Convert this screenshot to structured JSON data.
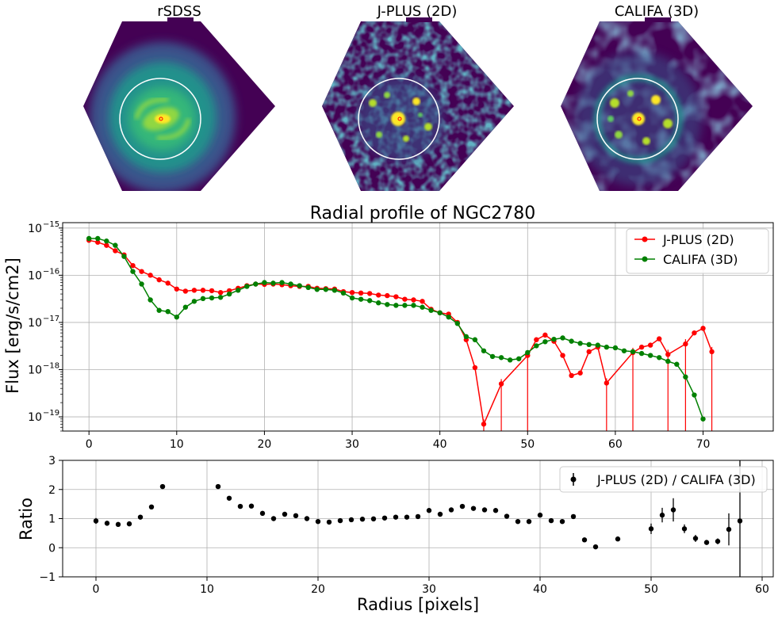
{
  "images": [
    {
      "title": "rSDSS",
      "style": "smooth"
    },
    {
      "title": "J-PLUS (2D)",
      "style": "noisy"
    },
    {
      "title": "CALIFA (3D)",
      "style": "clumpy"
    }
  ],
  "colors": {
    "background": "#440154",
    "jplus": "#ff0000",
    "califa": "#008000",
    "ratio": "#000000",
    "grid": "#b0b0b0",
    "aperture": "#ffffff"
  },
  "chart_data": [
    {
      "type": "line",
      "title": "Radial profile of NGC2780",
      "xlabel": "",
      "ylabel": "Flux [erg/s/cm2]",
      "yscale": "log",
      "xlim": [
        -3,
        78
      ],
      "ylim": [
        5e-20,
        1.3e-15
      ],
      "xticks": [
        0,
        10,
        20,
        30,
        40,
        50,
        60,
        70
      ],
      "yticks": [
        1e-19,
        1e-18,
        1e-17,
        1e-16,
        1e-15
      ],
      "ytick_labels": [
        [
          "10",
          "−19"
        ],
        [
          "10",
          "−18"
        ],
        [
          "10",
          "−17"
        ],
        [
          "10",
          "−16"
        ],
        [
          "10",
          "−15"
        ]
      ],
      "grid": true,
      "legend": "top-right",
      "series": [
        {
          "name": "J-PLUS (2D)",
          "color": "#ff0000",
          "x": [
            0,
            1,
            2,
            3,
            4,
            5,
            6,
            7,
            8,
            9,
            10,
            11,
            12,
            13,
            14,
            15,
            16,
            17,
            18,
            19,
            20,
            21,
            22,
            23,
            24,
            25,
            26,
            27,
            28,
            29,
            30,
            31,
            32,
            33,
            34,
            35,
            36,
            37,
            38,
            39,
            40,
            41,
            42,
            43,
            44,
            45,
            47,
            50,
            51,
            52,
            53,
            54,
            55,
            56,
            57,
            58,
            59,
            62,
            63,
            64,
            65,
            66,
            68,
            69,
            70,
            71
          ],
          "y": [
            5.5e-16,
            5e-16,
            4.3e-16,
            3.3e-16,
            2.7e-16,
            1.6e-16,
            1.2e-16,
            1e-16,
            8e-17,
            6.8e-17,
            5.1e-17,
            4.6e-17,
            4.8e-17,
            4.8e-17,
            4.7e-17,
            4.3e-17,
            4.7e-17,
            5.3e-17,
            6e-17,
            6.5e-17,
            6.4e-17,
            6.5e-17,
            6.3e-17,
            6e-17,
            5.8e-17,
            5.8e-17,
            5.3e-17,
            5.2e-17,
            5.1e-17,
            4.5e-17,
            4.3e-17,
            4.2e-17,
            4.1e-17,
            3.8e-17,
            3.7e-17,
            3.5e-17,
            3.1e-17,
            3e-17,
            2.8e-17,
            1.9e-17,
            1.6e-17,
            1.5e-17,
            1e-17,
            4.3e-18,
            1.1e-18,
            7e-20,
            5e-19,
            2e-18,
            4.3e-18,
            5.4e-18,
            4e-18,
            2e-18,
            7.5e-19,
            8.5e-19,
            2.4e-18,
            3e-18,
            5.2e-19,
            2.3e-18,
            3e-18,
            3.3e-18,
            4.5e-18,
            2.1e-18,
            3.5e-18,
            6e-18,
            7.5e-18,
            2.4e-18
          ],
          "dropouts": [
            45,
            47,
            50,
            59,
            62,
            66,
            68,
            71
          ]
        },
        {
          "name": "CALIFA (3D)",
          "color": "#008000",
          "x": [
            0,
            1,
            2,
            3,
            4,
            5,
            6,
            7,
            8,
            9,
            10,
            11,
            12,
            13,
            14,
            15,
            16,
            17,
            18,
            19,
            20,
            21,
            22,
            23,
            24,
            25,
            26,
            27,
            28,
            29,
            30,
            31,
            32,
            33,
            34,
            35,
            36,
            37,
            38,
            39,
            40,
            41,
            42,
            43,
            44,
            45,
            46,
            47,
            48,
            49,
            50,
            51,
            52,
            53,
            54,
            55,
            56,
            57,
            58,
            59,
            60,
            61,
            62,
            63,
            64,
            65,
            66,
            67,
            68,
            69,
            70
          ],
          "y": [
            6e-16,
            6e-16,
            5.3e-16,
            4.3e-16,
            2.5e-16,
            1.2e-16,
            6.5e-17,
            3e-17,
            1.8e-17,
            1.7e-17,
            1.3e-17,
            2.1e-17,
            2.8e-17,
            3.2e-17,
            3.3e-17,
            3.4e-17,
            4e-17,
            4.8e-17,
            5.8e-17,
            6.5e-17,
            7e-17,
            6.8e-17,
            7e-17,
            6.5e-17,
            6e-17,
            5.5e-17,
            5e-17,
            5e-17,
            4.8e-17,
            4.2e-17,
            3.3e-17,
            3.1e-17,
            2.9e-17,
            2.6e-17,
            2.4e-17,
            2.3e-17,
            2.3e-17,
            2.3e-17,
            2.1e-17,
            1.8e-17,
            1.6e-17,
            1.3e-17,
            9.5e-18,
            5e-18,
            4.3e-18,
            2.5e-18,
            1.9e-18,
            1.8e-18,
            1.6e-18,
            1.7e-18,
            2.3e-18,
            3.2e-18,
            3.9e-18,
            4.4e-18,
            4.7e-18,
            4e-18,
            3.6e-18,
            3.4e-18,
            3.3e-18,
            3e-18,
            2.9e-18,
            2.5e-18,
            2.4e-18,
            2.2e-18,
            2e-18,
            1.8e-18,
            1.5e-18,
            1.3e-18,
            7e-19,
            2.9e-19,
            9e-20
          ]
        }
      ]
    },
    {
      "type": "scatter",
      "title": "",
      "xlabel": "Radius [pixels]",
      "ylabel": "Ratio",
      "xlim": [
        -3,
        61
      ],
      "ylim": [
        -1,
        3
      ],
      "xticks": [
        0,
        10,
        20,
        30,
        40,
        50,
        60
      ],
      "yticks": [
        -1,
        0,
        1,
        2,
        3
      ],
      "ytick_labels": [
        "−1",
        "0",
        "1",
        "2",
        "3"
      ],
      "grid": true,
      "legend": "top-right",
      "series": [
        {
          "name": "J-PLUS (2D) / CALIFA (3D)",
          "color": "#000000",
          "x": [
            0,
            1,
            2,
            3,
            4,
            5,
            6,
            11,
            12,
            13,
            14,
            15,
            16,
            17,
            18,
            19,
            20,
            21,
            22,
            23,
            24,
            25,
            26,
            27,
            28,
            29,
            30,
            31,
            32,
            33,
            34,
            35,
            36,
            37,
            38,
            39,
            40,
            41,
            42,
            43,
            44,
            45,
            47,
            50,
            51,
            52,
            53,
            54,
            55,
            56,
            57,
            58
          ],
          "y": [
            0.92,
            0.84,
            0.8,
            0.82,
            1.05,
            1.4,
            2.1,
            2.1,
            1.7,
            1.42,
            1.43,
            1.18,
            1.0,
            1.15,
            1.1,
            1.0,
            0.9,
            0.88,
            0.93,
            0.96,
            0.98,
            0.99,
            1.02,
            1.05,
            1.05,
            1.07,
            1.28,
            1.15,
            1.3,
            1.42,
            1.35,
            1.3,
            1.28,
            1.08,
            0.9,
            0.9,
            1.12,
            0.93,
            0.9,
            1.07,
            0.27,
            0.03,
            0.3,
            0.65,
            1.12,
            1.3,
            0.65,
            0.32,
            0.18,
            0.22,
            0.63,
            0.92
          ],
          "yerr": [
            0.1,
            0.06,
            0.05,
            0.05,
            0.06,
            0.06,
            0.06,
            0.06,
            0.05,
            0.04,
            0.04,
            0.04,
            0.04,
            0.04,
            0.04,
            0.04,
            0.04,
            0.04,
            0.04,
            0.04,
            0.04,
            0.04,
            0.04,
            0.04,
            0.04,
            0.04,
            0.05,
            0.05,
            0.05,
            0.05,
            0.05,
            0.05,
            0.05,
            0.05,
            0.05,
            0.06,
            0.06,
            0.06,
            0.06,
            0.06,
            0.05,
            0.04,
            0.06,
            0.18,
            0.25,
            0.4,
            0.15,
            0.12,
            0.08,
            0.1,
            0.55,
            2.2
          ]
        }
      ]
    }
  ]
}
